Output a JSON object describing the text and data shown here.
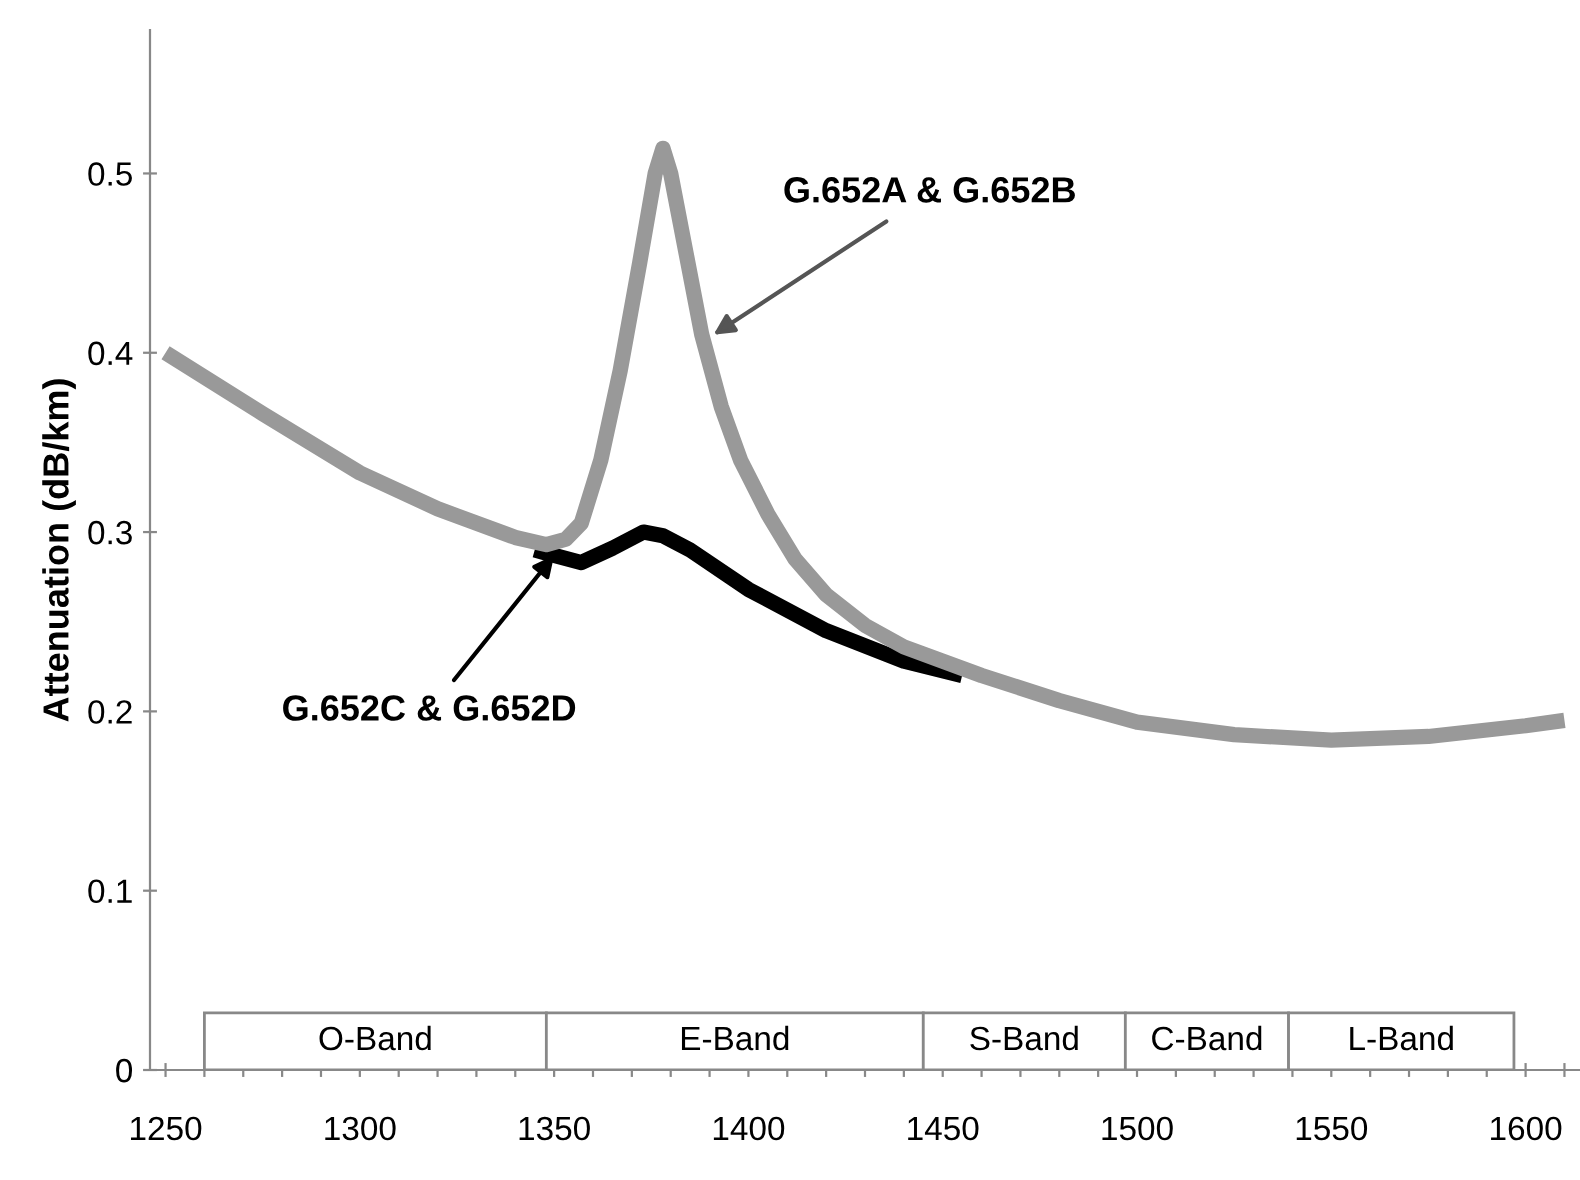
{
  "chart_data": {
    "type": "line",
    "ylabel": "Attenuation (dB/km)",
    "series": [
      {
        "color": "#999999",
        "x": [
          1250,
          1275,
          1300,
          1320,
          1340,
          1348,
          1353,
          1357,
          1362,
          1367,
          1372,
          1376,
          1378,
          1380,
          1384,
          1388,
          1393,
          1398,
          1405,
          1412,
          1420,
          1430,
          1440,
          1460,
          1480,
          1500,
          1525,
          1550,
          1575,
          1600,
          1610
        ],
        "values": [
          0.4,
          0.366,
          0.333,
          0.313,
          0.297,
          0.293,
          0.296,
          0.305,
          0.34,
          0.39,
          0.45,
          0.5,
          0.514,
          0.5,
          0.455,
          0.41,
          0.37,
          0.34,
          0.31,
          0.285,
          0.265,
          0.248,
          0.236,
          0.22,
          0.206,
          0.194,
          0.187,
          0.184,
          0.186,
          0.192,
          0.195
        ]
      },
      {
        "color": "#000000",
        "x": [
          1345,
          1350,
          1357,
          1365,
          1373,
          1378,
          1385,
          1400,
          1420,
          1440,
          1455
        ],
        "values": [
          0.29,
          0.287,
          0.283,
          0.291,
          0.3,
          0.298,
          0.29,
          0.268,
          0.245,
          0.228,
          0.22
        ]
      }
    ],
    "xlim": [
      1246,
      1614
    ],
    "ylim": [
      0,
      0.58
    ],
    "xticks": [
      1250,
      {
        "value": 1260,
        "label": null
      },
      {
        "value": 1270,
        "label": null
      },
      {
        "value": 1280,
        "label": null
      },
      {
        "value": 1290,
        "label": null
      },
      1300,
      {
        "value": 1310,
        "label": null
      },
      {
        "value": 1320,
        "label": null
      },
      {
        "value": 1330,
        "label": null
      },
      {
        "value": 1340,
        "label": null
      },
      1350,
      {
        "value": 1360,
        "label": null
      },
      {
        "value": 1370,
        "label": null
      },
      {
        "value": 1380,
        "label": null
      },
      {
        "value": 1390,
        "label": null
      },
      1400,
      {
        "value": 1410,
        "label": null
      },
      {
        "value": 1420,
        "label": null
      },
      {
        "value": 1430,
        "label": null
      },
      {
        "value": 1440,
        "label": null
      },
      1450,
      {
        "value": 1460,
        "label": null
      },
      {
        "value": 1470,
        "label": null
      },
      {
        "value": 1480,
        "label": null
      },
      {
        "value": 1490,
        "label": null
      },
      1500,
      {
        "value": 1510,
        "label": null
      },
      {
        "value": 1520,
        "label": null
      },
      {
        "value": 1530,
        "label": null
      },
      {
        "value": 1540,
        "label": null
      },
      1550,
      {
        "value": 1560,
        "label": null
      },
      {
        "value": 1570,
        "label": null
      },
      {
        "value": 1580,
        "label": null
      },
      {
        "value": 1590,
        "label": null
      },
      1600,
      {
        "value": 1610,
        "label": null
      }
    ],
    "yticks": [
      0,
      0.1,
      0.2,
      0.3,
      0.4,
      0.5
    ],
    "bands": [
      {
        "axis": "x",
        "from": 1260,
        "to": 1348,
        "label": "O-Band",
        "color": "#ffffff"
      },
      {
        "axis": "x",
        "from": 1348,
        "to": 1445,
        "label": "E-Band",
        "color": "#ffffff"
      },
      {
        "axis": "x",
        "from": 1445,
        "to": 1497,
        "label": "S-Band",
        "color": "#ffffff"
      },
      {
        "axis": "x",
        "from": 1497,
        "to": 1539,
        "label": "C-Band",
        "color": "#ffffff"
      },
      {
        "axis": "x",
        "from": 1539,
        "to": 1597,
        "label": "L-Band",
        "color": "#ffffff"
      }
    ],
    "annotations": [
      {
        "text": "G.652A & G.652B",
        "x": 1391,
        "y": 0.41
      },
      {
        "text": "G.652C & G.652D",
        "x": 1350,
        "y": 0.287
      }
    ],
    "grid": false,
    "legend": false,
    "line_style": "solid",
    "marker": "none"
  }
}
